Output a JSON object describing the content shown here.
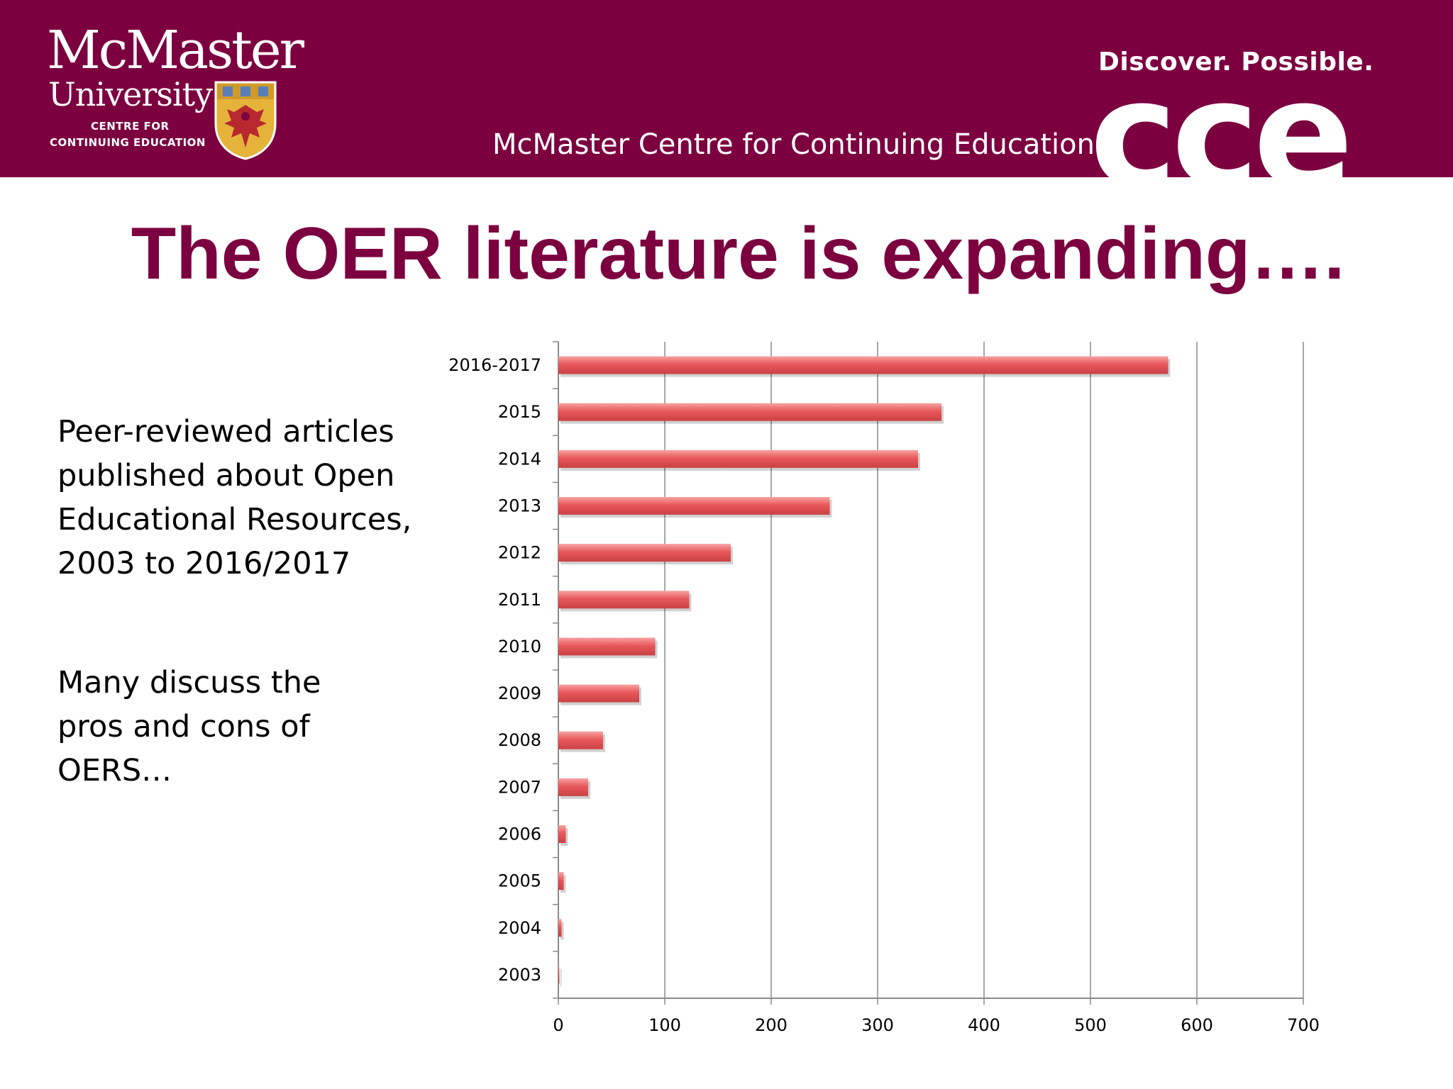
{
  "header": {
    "logo_name": "McMaster",
    "logo_university": "University",
    "logo_line1": "CENTRE FOR",
    "logo_line2": "CONTINUING EDUCATION",
    "tagline": "Discover. Possible.",
    "centre_name": "McMaster Centre for Continuing Education",
    "brand_mark": "cce"
  },
  "slide": {
    "title": "The OER literature is expanding…."
  },
  "body_text": {
    "block1_lines": [
      "Peer-reviewed articles",
      "published about Open",
      "Educational Resources,",
      "2003 to 2016/2017"
    ],
    "block2_lines": [
      "Many discuss the",
      "pros and cons of",
      "OERS…"
    ]
  },
  "colors": {
    "brand": "#7c0040",
    "bar": "#e8585a",
    "bar_highlight": "#f7a2a2",
    "grid": "#8a8a8a",
    "crest_gold": "#e6b33a",
    "crest_red": "#b7292f"
  },
  "chart_data": {
    "type": "bar",
    "orientation": "horizontal",
    "categories": [
      "2016-2017",
      "2015",
      "2014",
      "2013",
      "2012",
      "2011",
      "2010",
      "2009",
      "2008",
      "2007",
      "2006",
      "2005",
      "2004",
      "2003"
    ],
    "values": [
      573,
      360,
      338,
      255,
      162,
      123,
      91,
      76,
      42,
      28,
      7,
      5,
      3,
      1
    ],
    "xlim": [
      0,
      700
    ],
    "x_ticks": [
      0,
      100,
      200,
      300,
      400,
      500,
      600,
      700
    ],
    "title": "",
    "xlabel": "",
    "ylabel": "",
    "grid": "vertical",
    "legend": "none"
  }
}
